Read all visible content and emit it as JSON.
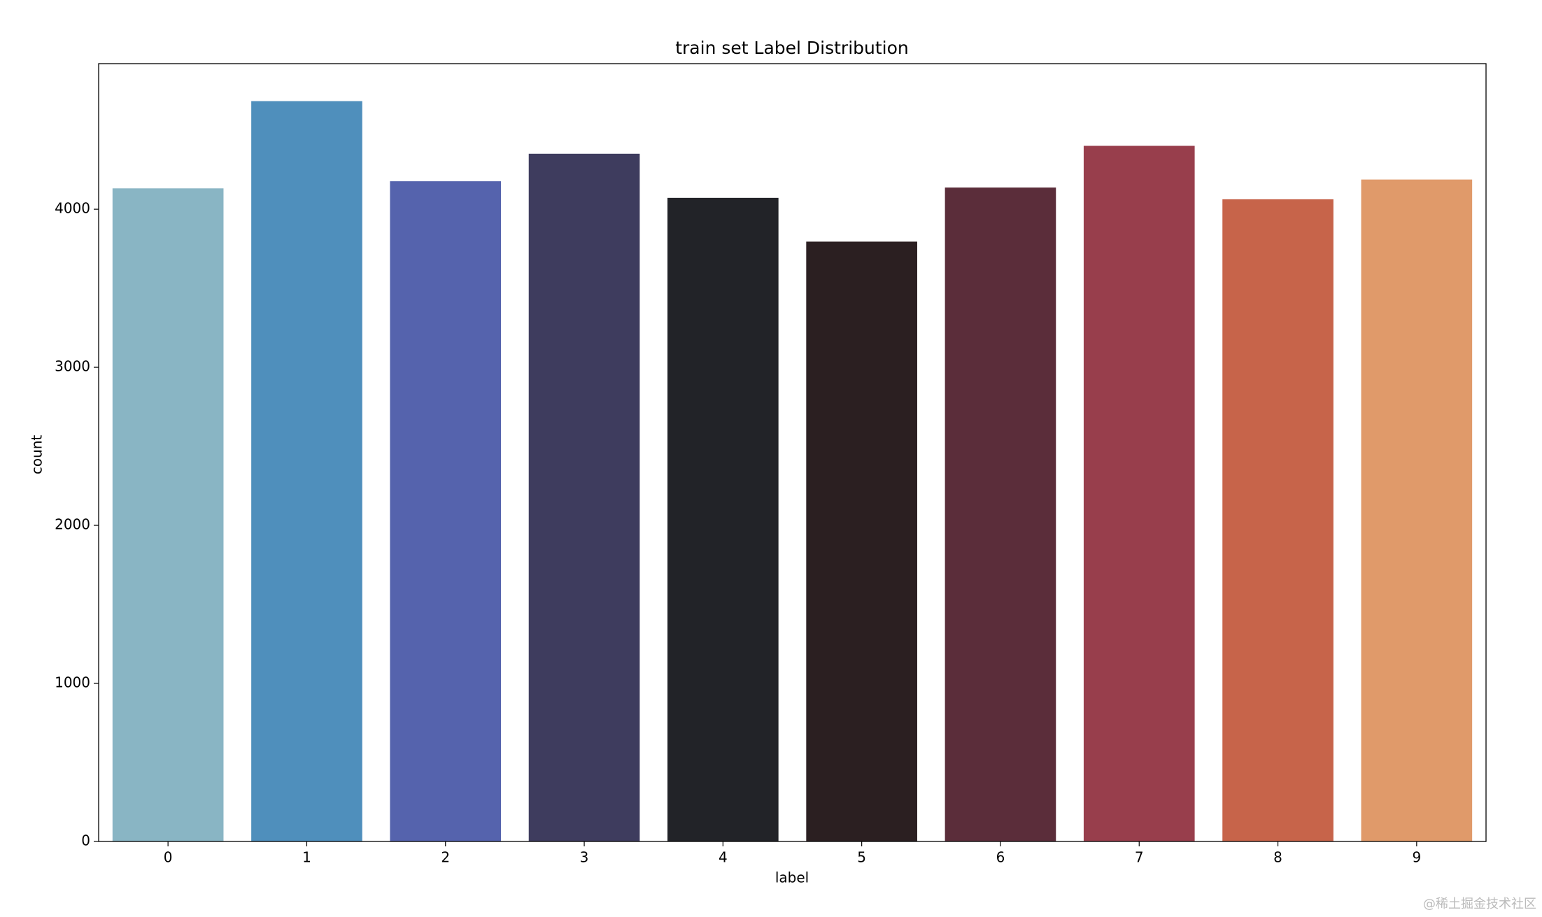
{
  "chart_data": {
    "type": "bar",
    "title": "train set Label Distribution",
    "x_label": "label",
    "y_label": "count",
    "categories": [
      "0",
      "1",
      "2",
      "3",
      "4",
      "5",
      "6",
      "7",
      "8",
      "9"
    ],
    "values": [
      4132,
      4684,
      4177,
      4351,
      4072,
      3795,
      4137,
      4401,
      4063,
      4188
    ],
    "colors": [
      "#89b5c4",
      "#4f8fbc",
      "#5563ad",
      "#3e3c5e",
      "#222328",
      "#2b1f21",
      "#5b2d3a",
      "#983e4c",
      "#c7644a",
      "#e09a6a"
    ],
    "ylim": [
      0,
      4921
    ],
    "yticks": [
      0,
      1000,
      2000,
      3000,
      4000
    ],
    "grid": false
  },
  "watermark": "@稀土掘金技术社区"
}
